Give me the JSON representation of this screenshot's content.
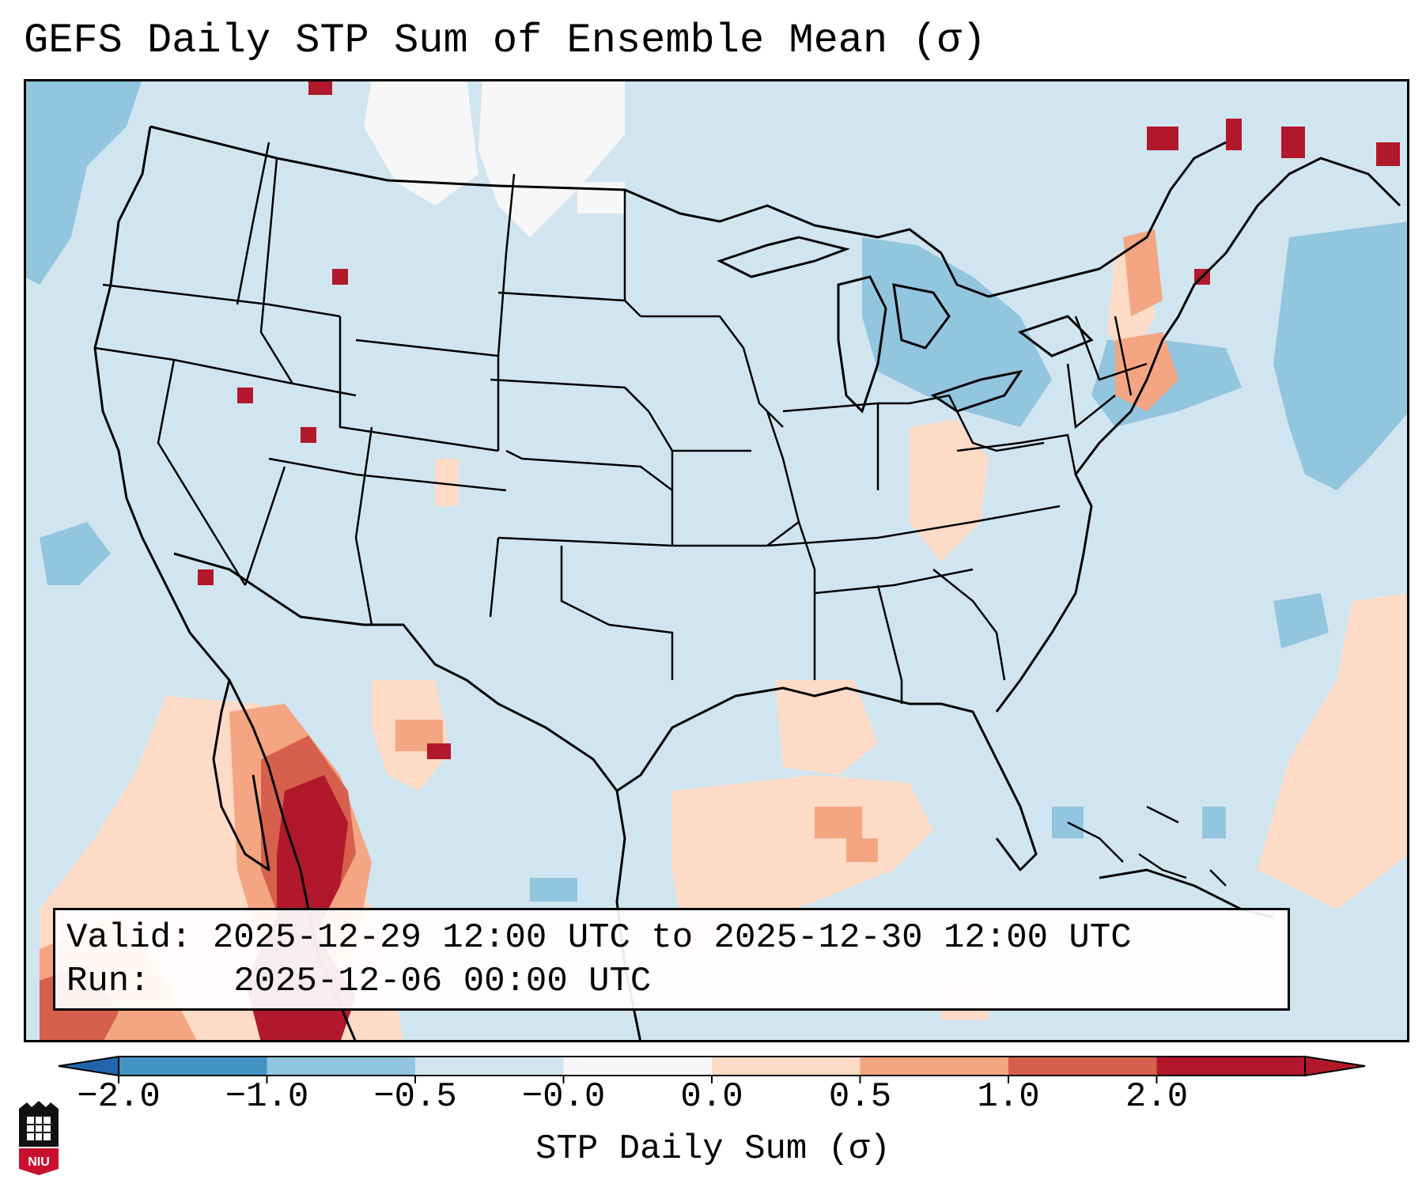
{
  "title": "GEFS Daily STP Sum of Ensemble Mean (σ)",
  "info": {
    "valid_label": "Valid:",
    "valid_text": "2025-12-29 12:00 UTC to 2025-12-30 12:00 UTC",
    "run_label": "Run:",
    "run_text": "2025-12-06 00:00 UTC"
  },
  "colorbar": {
    "label": "STP Daily Sum (σ)",
    "ticks": [
      "−2.0",
      "−1.0",
      "−0.5",
      "−0.0",
      "0.0",
      "0.5",
      "1.0",
      "2.0"
    ],
    "colors": [
      "#4393c3",
      "#92c5de",
      "#d1e5f0",
      "#f7f7f7",
      "#fddbc7",
      "#f4a582",
      "#d6604d",
      "#b2182b"
    ],
    "extend_low_color": "#2166ac",
    "extend_high_color": "#b2182b"
  },
  "colors": {
    "background_field": "#d1e5f0",
    "ocean_field": "#d1e5f0",
    "boundary": "#000000"
  },
  "logo": {
    "text": "NIU"
  }
}
